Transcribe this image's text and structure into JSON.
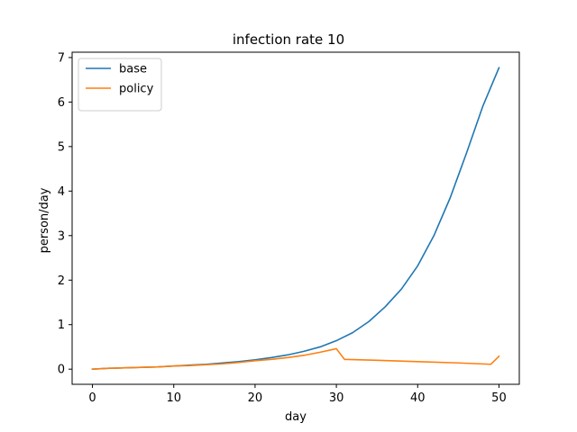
{
  "chart_data": {
    "type": "line",
    "title": "infection rate 10",
    "xlabel": "day",
    "ylabel": "person/day",
    "xlim": [
      -2.5,
      52.5
    ],
    "ylim": [
      -0.34,
      7.12
    ],
    "xticks": [
      0,
      10,
      20,
      30,
      40,
      50
    ],
    "yticks": [
      0,
      1,
      2,
      3,
      4,
      5,
      6,
      7
    ],
    "grid": false,
    "legend_position": "upper-left",
    "series": [
      {
        "name": "base",
        "color": "#1f77b4",
        "x": [
          0,
          2,
          4,
          6,
          8,
          10,
          12,
          14,
          16,
          18,
          20,
          22,
          24,
          26,
          28,
          30,
          32,
          34,
          36,
          38,
          40,
          42,
          44,
          46,
          48,
          50
        ],
        "y": [
          0.0,
          0.02,
          0.03,
          0.04,
          0.05,
          0.07,
          0.09,
          0.11,
          0.14,
          0.17,
          0.21,
          0.26,
          0.32,
          0.4,
          0.5,
          0.64,
          0.82,
          1.07,
          1.4,
          1.8,
          2.32,
          3.0,
          3.85,
          4.85,
          5.9,
          6.77
        ]
      },
      {
        "name": "policy",
        "color": "#ff7f0e",
        "x": [
          0,
          2,
          4,
          6,
          8,
          10,
          12,
          14,
          16,
          18,
          20,
          22,
          24,
          26,
          28,
          30,
          31,
          35,
          40,
          45,
          49,
          50
        ],
        "y": [
          0.0,
          0.02,
          0.03,
          0.04,
          0.05,
          0.07,
          0.08,
          0.1,
          0.12,
          0.15,
          0.19,
          0.22,
          0.26,
          0.31,
          0.38,
          0.46,
          0.22,
          0.2,
          0.17,
          0.14,
          0.11,
          0.29
        ]
      }
    ]
  }
}
